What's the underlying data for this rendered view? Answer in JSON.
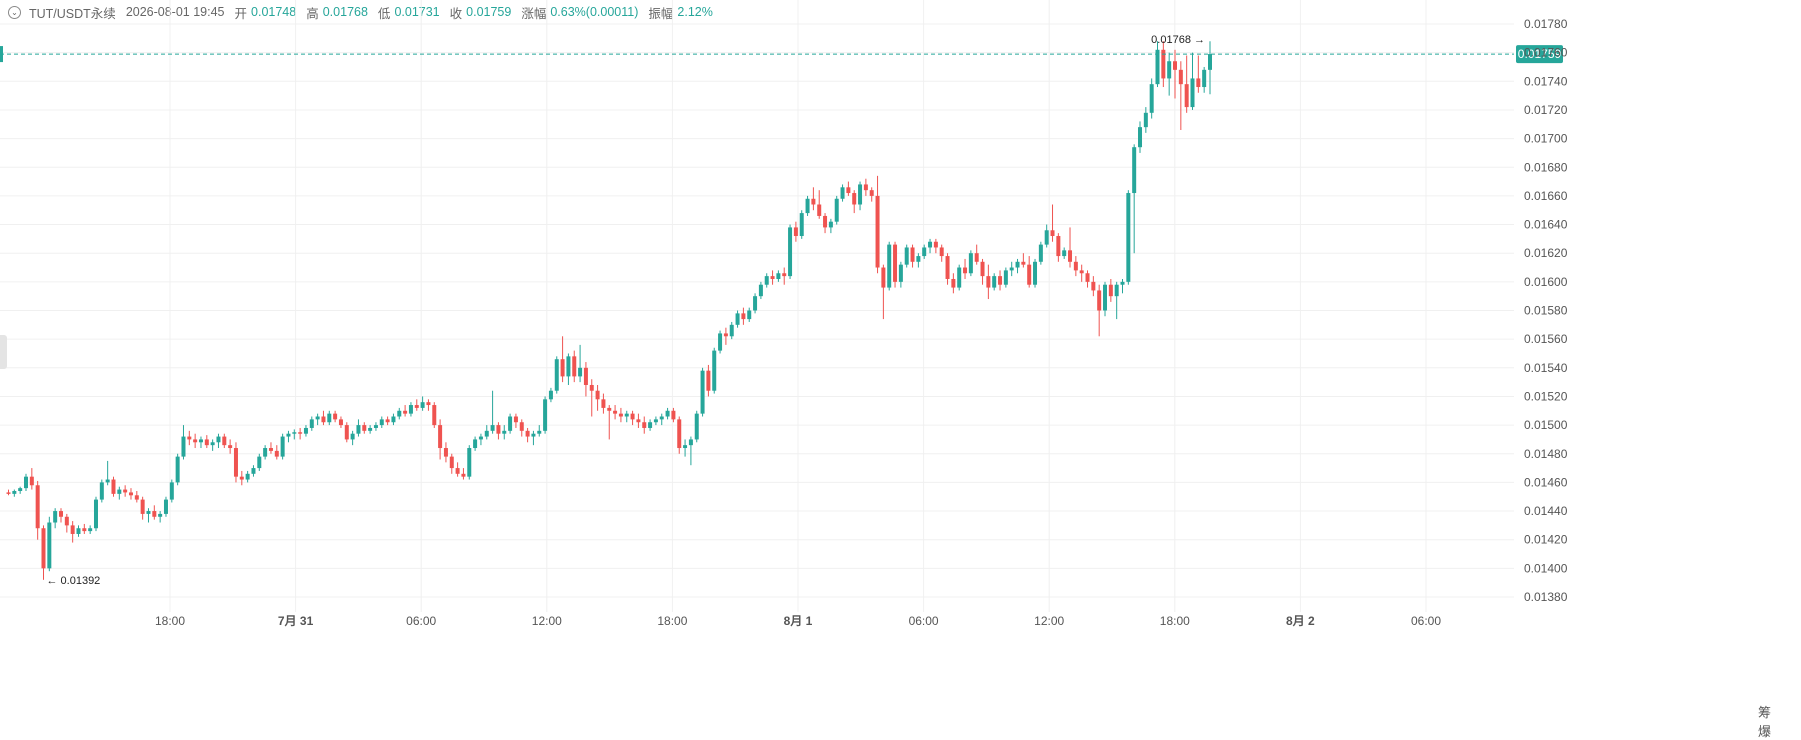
{
  "header": {
    "symbol": "TUT/USDT永续",
    "datetime": "2026-08-01 19:45",
    "open_label": "开",
    "open": "0.01748",
    "high_label": "高",
    "high": "0.01768",
    "low_label": "低",
    "low": "0.01731",
    "close_label": "收",
    "close": "0.01759",
    "change_label": "涨幅",
    "change": "0.63%(0.00011)",
    "amplitude_label": "振幅",
    "amplitude": "2.12%"
  },
  "colors": {
    "up": "#26a69a",
    "down": "#ef5350",
    "price_line": "#26a69a",
    "grid": "#f0f0f0"
  },
  "right_tools_label": "筹 爆",
  "chart_data": {
    "type": "candlestick",
    "interval_minutes": 45,
    "y_ticks": [
      "0.01780",
      "0.01760",
      "0.01740",
      "0.01720",
      "0.01700",
      "0.01680",
      "0.01660",
      "0.01640",
      "0.01620",
      "0.01600",
      "0.01580",
      "0.01560",
      "0.01540",
      "0.01520",
      "0.01500",
      "0.01480",
      "0.01460",
      "0.01440",
      "0.01420",
      "0.01400",
      "0.01380"
    ],
    "x_ticks": [
      {
        "label": "18:00",
        "day": 0,
        "hour": 18,
        "bold": false
      },
      {
        "label": "7月 31",
        "day": 1,
        "hour": 0,
        "bold": true
      },
      {
        "label": "06:00",
        "day": 1,
        "hour": 6,
        "bold": false
      },
      {
        "label": "12:00",
        "day": 1,
        "hour": 12,
        "bold": false
      },
      {
        "label": "18:00",
        "day": 1,
        "hour": 18,
        "bold": false
      },
      {
        "label": "8月 1",
        "day": 2,
        "hour": 0,
        "bold": true
      },
      {
        "label": "06:00",
        "day": 2,
        "hour": 6,
        "bold": false
      },
      {
        "label": "12:00",
        "day": 2,
        "hour": 12,
        "bold": false
      },
      {
        "label": "18:00",
        "day": 2,
        "hour": 18,
        "bold": false
      },
      {
        "label": "8月 2",
        "day": 3,
        "hour": 0,
        "bold": true
      },
      {
        "label": "06:00",
        "day": 3,
        "hour": 6,
        "bold": false
      }
    ],
    "current_price": "0.01759",
    "high_marker": {
      "label": "0.01768",
      "value": 0.01768
    },
    "low_marker": {
      "label": "0.01392",
      "value": 0.01392
    },
    "candles": [
      [
        0.01453,
        0.01455,
        0.01451,
        0.01452
      ],
      [
        0.01452,
        0.01455,
        0.0145,
        0.01454
      ],
      [
        0.01454,
        0.01457,
        0.01452,
        0.01456
      ],
      [
        0.01456,
        0.01466,
        0.01454,
        0.01464
      ],
      [
        0.01464,
        0.0147,
        0.01455,
        0.01458
      ],
      [
        0.01458,
        0.01461,
        0.0142,
        0.01428
      ],
      [
        0.01428,
        0.0143,
        0.01392,
        0.014
      ],
      [
        0.014,
        0.01436,
        0.01398,
        0.01432
      ],
      [
        0.01432,
        0.01442,
        0.01428,
        0.0144
      ],
      [
        0.0144,
        0.01442,
        0.01432,
        0.01436
      ],
      [
        0.01436,
        0.01438,
        0.01425,
        0.0143
      ],
      [
        0.0143,
        0.01433,
        0.01418,
        0.01424
      ],
      [
        0.01424,
        0.0143,
        0.01422,
        0.01428
      ],
      [
        0.01428,
        0.01431,
        0.01424,
        0.01426
      ],
      [
        0.01426,
        0.0143,
        0.01424,
        0.01428
      ],
      [
        0.01428,
        0.0145,
        0.01426,
        0.01448
      ],
      [
        0.01448,
        0.01462,
        0.01446,
        0.0146
      ],
      [
        0.0146,
        0.01475,
        0.01458,
        0.01462
      ],
      [
        0.01462,
        0.01464,
        0.0145,
        0.01452
      ],
      [
        0.01452,
        0.01457,
        0.01448,
        0.01455
      ],
      [
        0.01455,
        0.01458,
        0.0145,
        0.01453
      ],
      [
        0.01453,
        0.01456,
        0.01448,
        0.01451
      ],
      [
        0.01451,
        0.01454,
        0.01446,
        0.01448
      ],
      [
        0.01448,
        0.0145,
        0.01434,
        0.01438
      ],
      [
        0.01438,
        0.01442,
        0.01432,
        0.0144
      ],
      [
        0.0144,
        0.01444,
        0.01434,
        0.01436
      ],
      [
        0.01436,
        0.0144,
        0.01432,
        0.01438
      ],
      [
        0.01438,
        0.0145,
        0.01436,
        0.01448
      ],
      [
        0.01448,
        0.01462,
        0.01446,
        0.0146
      ],
      [
        0.0146,
        0.0148,
        0.01458,
        0.01478
      ],
      [
        0.01478,
        0.015,
        0.01476,
        0.01492
      ],
      [
        0.01492,
        0.01496,
        0.01486,
        0.0149
      ],
      [
        0.0149,
        0.01494,
        0.01484,
        0.01488
      ],
      [
        0.01488,
        0.01492,
        0.01484,
        0.0149
      ],
      [
        0.0149,
        0.01493,
        0.01484,
        0.01486
      ],
      [
        0.01486,
        0.0149,
        0.01482,
        0.01488
      ],
      [
        0.01488,
        0.01494,
        0.01484,
        0.01492
      ],
      [
        0.01492,
        0.01494,
        0.01484,
        0.01486
      ],
      [
        0.01486,
        0.0149,
        0.0148,
        0.01484
      ],
      [
        0.01484,
        0.01488,
        0.0146,
        0.01464
      ],
      [
        0.01464,
        0.01468,
        0.01458,
        0.01462
      ],
      [
        0.01462,
        0.01468,
        0.0146,
        0.01466
      ],
      [
        0.01466,
        0.01472,
        0.01464,
        0.0147
      ],
      [
        0.0147,
        0.0148,
        0.01468,
        0.01478
      ],
      [
        0.01478,
        0.01486,
        0.01476,
        0.01484
      ],
      [
        0.01484,
        0.01488,
        0.0148,
        0.01482
      ],
      [
        0.01482,
        0.01486,
        0.01476,
        0.01478
      ],
      [
        0.01478,
        0.01494,
        0.01476,
        0.01492
      ],
      [
        0.01492,
        0.01496,
        0.01488,
        0.01494
      ],
      [
        0.01494,
        0.01497,
        0.0149,
        0.01495
      ],
      [
        0.01495,
        0.01498,
        0.0149,
        0.01494
      ],
      [
        0.01494,
        0.015,
        0.01492,
        0.01498
      ],
      [
        0.01498,
        0.01506,
        0.01496,
        0.01504
      ],
      [
        0.01504,
        0.01508,
        0.015,
        0.01506
      ],
      [
        0.01506,
        0.0151,
        0.015,
        0.01502
      ],
      [
        0.01502,
        0.0151,
        0.015,
        0.01508
      ],
      [
        0.01508,
        0.0151,
        0.01502,
        0.01504
      ],
      [
        0.01504,
        0.01506,
        0.01498,
        0.015
      ],
      [
        0.015,
        0.01502,
        0.01488,
        0.0149
      ],
      [
        0.0149,
        0.01496,
        0.01486,
        0.01494
      ],
      [
        0.01494,
        0.01504,
        0.01492,
        0.015
      ],
      [
        0.015,
        0.01502,
        0.01494,
        0.01496
      ],
      [
        0.01496,
        0.015,
        0.01494,
        0.01498
      ],
      [
        0.01498,
        0.01502,
        0.01496,
        0.015
      ],
      [
        0.015,
        0.01506,
        0.01498,
        0.01504
      ],
      [
        0.01504,
        0.01506,
        0.015,
        0.01502
      ],
      [
        0.01502,
        0.01508,
        0.015,
        0.01506
      ],
      [
        0.01506,
        0.01512,
        0.01504,
        0.0151
      ],
      [
        0.0151,
        0.01514,
        0.01506,
        0.01508
      ],
      [
        0.01508,
        0.01516,
        0.01506,
        0.01514
      ],
      [
        0.01514,
        0.01518,
        0.0151,
        0.01512
      ],
      [
        0.01512,
        0.0152,
        0.0151,
        0.01516
      ],
      [
        0.01516,
        0.01518,
        0.0151,
        0.01514
      ],
      [
        0.01514,
        0.01516,
        0.01498,
        0.015
      ],
      [
        0.015,
        0.01504,
        0.01476,
        0.01484
      ],
      [
        0.01484,
        0.01488,
        0.01474,
        0.01478
      ],
      [
        0.01478,
        0.0148,
        0.01466,
        0.0147
      ],
      [
        0.0147,
        0.01474,
        0.01464,
        0.01466
      ],
      [
        0.01466,
        0.0147,
        0.01462,
        0.01464
      ],
      [
        0.01464,
        0.01486,
        0.01462,
        0.01484
      ],
      [
        0.01484,
        0.01492,
        0.01482,
        0.0149
      ],
      [
        0.0149,
        0.01494,
        0.01486,
        0.01492
      ],
      [
        0.01492,
        0.015,
        0.0149,
        0.01496
      ],
      [
        0.01496,
        0.01524,
        0.01494,
        0.015
      ],
      [
        0.015,
        0.01502,
        0.0149,
        0.01494
      ],
      [
        0.01494,
        0.015,
        0.0149,
        0.01496
      ],
      [
        0.01496,
        0.01508,
        0.01494,
        0.01506
      ],
      [
        0.01506,
        0.01508,
        0.01498,
        0.01502
      ],
      [
        0.01502,
        0.01504,
        0.01492,
        0.01496
      ],
      [
        0.01496,
        0.01498,
        0.01488,
        0.01492
      ],
      [
        0.01492,
        0.01496,
        0.01486,
        0.01494
      ],
      [
        0.01494,
        0.015,
        0.01492,
        0.01496
      ],
      [
        0.01496,
        0.0152,
        0.01494,
        0.01518
      ],
      [
        0.01518,
        0.01526,
        0.01516,
        0.01524
      ],
      [
        0.01524,
        0.01548,
        0.01522,
        0.01546
      ],
      [
        0.01546,
        0.01562,
        0.0153,
        0.01534
      ],
      [
        0.01534,
        0.0155,
        0.01528,
        0.01548
      ],
      [
        0.01548,
        0.01552,
        0.0153,
        0.01534
      ],
      [
        0.01534,
        0.01556,
        0.0153,
        0.0154
      ],
      [
        0.0154,
        0.01544,
        0.0152,
        0.01528
      ],
      [
        0.01528,
        0.01532,
        0.01506,
        0.01524
      ],
      [
        0.01524,
        0.01528,
        0.0151,
        0.01518
      ],
      [
        0.01518,
        0.01522,
        0.01508,
        0.01512
      ],
      [
        0.01512,
        0.01514,
        0.0149,
        0.0151
      ],
      [
        0.0151,
        0.01514,
        0.01504,
        0.01508
      ],
      [
        0.01508,
        0.01512,
        0.01502,
        0.01506
      ],
      [
        0.01506,
        0.0151,
        0.01502,
        0.01508
      ],
      [
        0.01508,
        0.0151,
        0.015,
        0.01504
      ],
      [
        0.01504,
        0.01508,
        0.01498,
        0.01502
      ],
      [
        0.01502,
        0.01506,
        0.01494,
        0.01498
      ],
      [
        0.01498,
        0.01504,
        0.01496,
        0.01502
      ],
      [
        0.01502,
        0.01506,
        0.015,
        0.01504
      ],
      [
        0.01504,
        0.01508,
        0.015,
        0.01506
      ],
      [
        0.01506,
        0.01512,
        0.01504,
        0.0151
      ],
      [
        0.0151,
        0.01512,
        0.01502,
        0.01504
      ],
      [
        0.01504,
        0.01506,
        0.0148,
        0.01484
      ],
      [
        0.01484,
        0.0149,
        0.01478,
        0.01486
      ],
      [
        0.01486,
        0.01492,
        0.01472,
        0.0149
      ],
      [
        0.0149,
        0.0151,
        0.01488,
        0.01508
      ],
      [
        0.01508,
        0.0154,
        0.01506,
        0.01538
      ],
      [
        0.01538,
        0.01542,
        0.0152,
        0.01524
      ],
      [
        0.01524,
        0.01554,
        0.01522,
        0.01552
      ],
      [
        0.01552,
        0.01566,
        0.0155,
        0.01564
      ],
      [
        0.01564,
        0.01568,
        0.01556,
        0.01562
      ],
      [
        0.01562,
        0.01572,
        0.0156,
        0.0157
      ],
      [
        0.0157,
        0.0158,
        0.01568,
        0.01578
      ],
      [
        0.01578,
        0.01582,
        0.0157,
        0.01574
      ],
      [
        0.01574,
        0.01582,
        0.01572,
        0.0158
      ],
      [
        0.0158,
        0.01592,
        0.01578,
        0.0159
      ],
      [
        0.0159,
        0.016,
        0.01588,
        0.01598
      ],
      [
        0.01598,
        0.01606,
        0.01596,
        0.01604
      ],
      [
        0.01604,
        0.01608,
        0.01598,
        0.01602
      ],
      [
        0.01602,
        0.01608,
        0.016,
        0.01606
      ],
      [
        0.01606,
        0.0161,
        0.01598,
        0.01604
      ],
      [
        0.01604,
        0.0164,
        0.01602,
        0.01638
      ],
      [
        0.01638,
        0.01642,
        0.01628,
        0.01632
      ],
      [
        0.01632,
        0.0165,
        0.0163,
        0.01648
      ],
      [
        0.01648,
        0.0166,
        0.01646,
        0.01658
      ],
      [
        0.01658,
        0.01666,
        0.0165,
        0.01654
      ],
      [
        0.01654,
        0.01664,
        0.01644,
        0.01646
      ],
      [
        0.01646,
        0.01648,
        0.01634,
        0.01638
      ],
      [
        0.01638,
        0.01644,
        0.01634,
        0.01642
      ],
      [
        0.01642,
        0.0166,
        0.0164,
        0.01658
      ],
      [
        0.01658,
        0.01668,
        0.01656,
        0.01666
      ],
      [
        0.01666,
        0.0167,
        0.0166,
        0.01662
      ],
      [
        0.01662,
        0.01664,
        0.01648,
        0.01654
      ],
      [
        0.01654,
        0.0167,
        0.0165,
        0.01668
      ],
      [
        0.01668,
        0.01672,
        0.0166,
        0.01664
      ],
      [
        0.01664,
        0.01666,
        0.01656,
        0.0166
      ],
      [
        0.0166,
        0.01674,
        0.01606,
        0.0161
      ],
      [
        0.0161,
        0.01612,
        0.01574,
        0.01596
      ],
      [
        0.01596,
        0.01628,
        0.01594,
        0.01626
      ],
      [
        0.01626,
        0.01628,
        0.01596,
        0.016
      ],
      [
        0.016,
        0.01614,
        0.01596,
        0.01612
      ],
      [
        0.01612,
        0.01626,
        0.0161,
        0.01624
      ],
      [
        0.01624,
        0.01626,
        0.0161,
        0.01614
      ],
      [
        0.01614,
        0.0162,
        0.0161,
        0.01618
      ],
      [
        0.01618,
        0.01626,
        0.01616,
        0.01624
      ],
      [
        0.01624,
        0.0163,
        0.0162,
        0.01628
      ],
      [
        0.01628,
        0.0163,
        0.0162,
        0.01624
      ],
      [
        0.01624,
        0.01626,
        0.01614,
        0.01618
      ],
      [
        0.01618,
        0.0162,
        0.01598,
        0.01602
      ],
      [
        0.01602,
        0.01606,
        0.01592,
        0.01596
      ],
      [
        0.01596,
        0.01612,
        0.01594,
        0.0161
      ],
      [
        0.0161,
        0.01616,
        0.01602,
        0.01606
      ],
      [
        0.01606,
        0.01622,
        0.01604,
        0.0162
      ],
      [
        0.0162,
        0.01626,
        0.01612,
        0.01614
      ],
      [
        0.01614,
        0.01616,
        0.01598,
        0.01604
      ],
      [
        0.01604,
        0.01612,
        0.01588,
        0.01596
      ],
      [
        0.01596,
        0.01606,
        0.01594,
        0.01604
      ],
      [
        0.01604,
        0.01608,
        0.01594,
        0.01598
      ],
      [
        0.01598,
        0.0161,
        0.01596,
        0.01608
      ],
      [
        0.01608,
        0.01614,
        0.01604,
        0.0161
      ],
      [
        0.0161,
        0.01616,
        0.01606,
        0.01614
      ],
      [
        0.01614,
        0.0162,
        0.0161,
        0.01612
      ],
      [
        0.01612,
        0.01618,
        0.01596,
        0.01598
      ],
      [
        0.01598,
        0.01616,
        0.01596,
        0.01614
      ],
      [
        0.01614,
        0.01628,
        0.01612,
        0.01626
      ],
      [
        0.01626,
        0.0164,
        0.01624,
        0.01636
      ],
      [
        0.01636,
        0.01654,
        0.01628,
        0.01632
      ],
      [
        0.01632,
        0.01634,
        0.01614,
        0.01618
      ],
      [
        0.01618,
        0.01624,
        0.01616,
        0.01622
      ],
      [
        0.01622,
        0.01638,
        0.0161,
        0.01614
      ],
      [
        0.01614,
        0.01618,
        0.01604,
        0.01608
      ],
      [
        0.01608,
        0.01612,
        0.016,
        0.01606
      ],
      [
        0.01606,
        0.01608,
        0.01596,
        0.016
      ],
      [
        0.016,
        0.01604,
        0.0159,
        0.01594
      ],
      [
        0.01594,
        0.01598,
        0.01562,
        0.0158
      ],
      [
        0.0158,
        0.016,
        0.01576,
        0.01598
      ],
      [
        0.01598,
        0.01602,
        0.01586,
        0.0159
      ],
      [
        0.0159,
        0.016,
        0.01574,
        0.01598
      ],
      [
        0.01598,
        0.01602,
        0.01592,
        0.016
      ],
      [
        0.016,
        0.01664,
        0.01598,
        0.01662
      ],
      [
        0.01662,
        0.01696,
        0.0162,
        0.01694
      ],
      [
        0.01694,
        0.01712,
        0.0169,
        0.01708
      ],
      [
        0.01708,
        0.01722,
        0.01704,
        0.01718
      ],
      [
        0.01718,
        0.01742,
        0.01714,
        0.01738
      ],
      [
        0.01738,
        0.01768,
        0.01736,
        0.01762
      ],
      [
        0.01762,
        0.01768,
        0.01736,
        0.01742
      ],
      [
        0.01742,
        0.0176,
        0.0173,
        0.01754
      ],
      [
        0.01754,
        0.01762,
        0.01728,
        0.01748
      ],
      [
        0.01748,
        0.01754,
        0.01706,
        0.01738
      ],
      [
        0.01738,
        0.01758,
        0.01718,
        0.01722
      ],
      [
        0.01722,
        0.0176,
        0.0172,
        0.01742
      ],
      [
        0.01742,
        0.01758,
        0.01732,
        0.01736
      ],
      [
        0.01736,
        0.0175,
        0.01732,
        0.01748
      ],
      [
        0.01748,
        0.01768,
        0.01731,
        0.01759
      ]
    ]
  }
}
